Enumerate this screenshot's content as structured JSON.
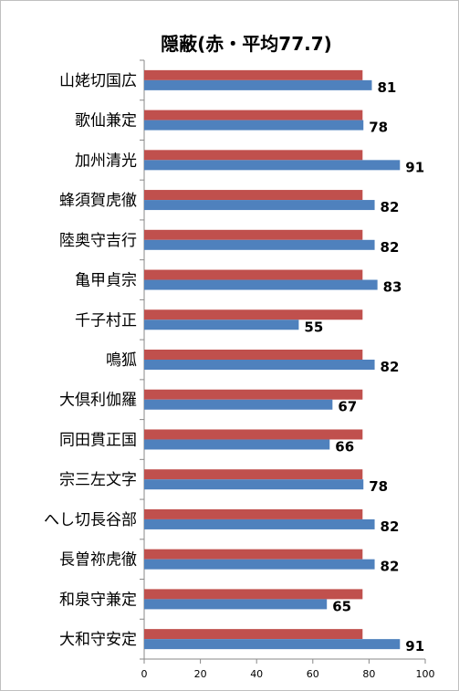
{
  "chart_data": {
    "type": "bar",
    "orientation": "horizontal",
    "title": "隠蔽(赤・平均77.7)",
    "categories": [
      "山姥切国広",
      "歌仙兼定",
      "加州清光",
      "蜂須賀虎徹",
      "陸奥守吉行",
      "亀甲貞宗",
      "千子村正",
      "鳴狐",
      "大倶利伽羅",
      "同田貫正国",
      "宗三左文字",
      "へし切長谷部",
      "長曽祢虎徹",
      "和泉守兼定",
      "大和守安定"
    ],
    "series": [
      {
        "color": "#c0504d",
        "values": [
          77.7,
          77.7,
          77.7,
          77.7,
          77.7,
          77.7,
          77.7,
          77.7,
          77.7,
          77.7,
          77.7,
          77.7,
          77.7,
          77.7,
          77.7
        ]
      },
      {
        "color": "#4f81bd",
        "values": [
          81,
          78,
          91,
          82,
          82,
          83,
          55,
          82,
          67,
          66,
          78,
          82,
          82,
          65,
          91
        ]
      }
    ],
    "data_labels": [
      "81",
      "78",
      "91",
      "82",
      "82",
      "83",
      "55",
      "82",
      "67",
      "66",
      "78",
      "82",
      "82",
      "65",
      "91"
    ],
    "xlim": [
      0,
      100
    ],
    "xticks": [
      "0",
      "20",
      "40",
      "60",
      "80",
      "100"
    ],
    "grid": false,
    "legend": "none"
  }
}
